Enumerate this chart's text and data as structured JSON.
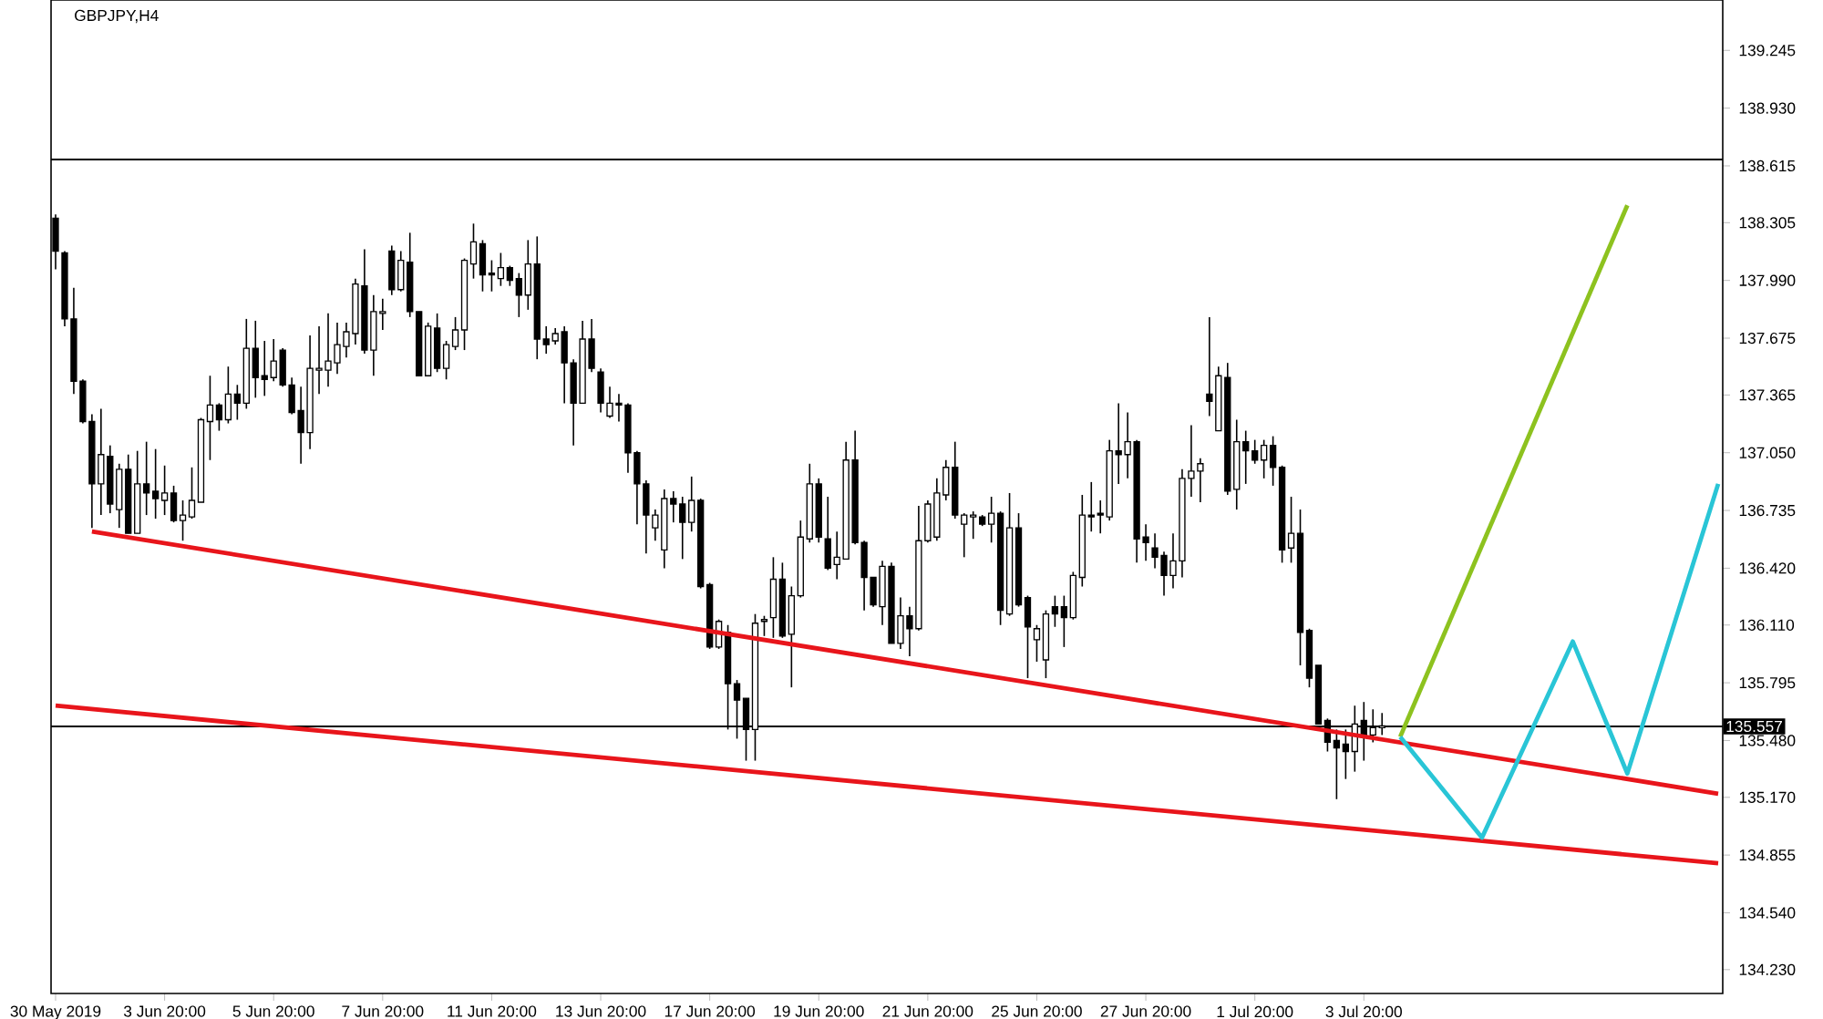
{
  "chart_data": {
    "type": "candlestick",
    "title": "GBPJPY,H4",
    "categories": [
      "30 May 2019",
      null,
      null,
      null,
      null,
      null,
      null,
      null,
      null,
      null,
      null,
      null,
      "3 Jun 20:00",
      null,
      null,
      null,
      null,
      null,
      null,
      null,
      null,
      null,
      null,
      null,
      "5 Jun 20:00",
      null,
      null,
      null,
      null,
      null,
      null,
      null,
      null,
      null,
      null,
      null,
      "7 Jun 20:00",
      null,
      null,
      null,
      null,
      null,
      null,
      null,
      null,
      null,
      null,
      null,
      "11 Jun 20:00",
      null,
      null,
      null,
      null,
      null,
      null,
      null,
      null,
      null,
      null,
      null,
      "13 Jun 20:00",
      null,
      null,
      null,
      null,
      null,
      null,
      null,
      null,
      null,
      null,
      null,
      "17 Jun 20:00",
      null,
      null,
      null,
      null,
      null,
      null,
      null,
      null,
      null,
      null,
      null,
      "19 Jun 20:00",
      null,
      null,
      null,
      null,
      null,
      null,
      null,
      null,
      null,
      null,
      null,
      "21 Jun 20:00",
      null,
      null,
      null,
      null,
      null,
      null,
      null,
      null,
      null,
      null,
      null,
      "25 Jun 20:00",
      null,
      null,
      null,
      null,
      null,
      null,
      null,
      null,
      null,
      null,
      null,
      "27 Jun 20:00",
      null,
      null,
      null,
      null,
      null,
      null,
      null,
      null,
      null,
      null,
      null,
      "1 Jul 20:00",
      null,
      null,
      null,
      null,
      null,
      null,
      null,
      null,
      null,
      null,
      null,
      "3 Jul 20:00",
      null,
      null,
      null,
      null,
      null,
      null,
      null,
      null,
      null,
      null,
      null,
      null,
      null,
      null,
      null,
      null,
      null,
      null,
      null,
      null,
      null,
      null,
      null,
      null,
      null,
      null,
      null,
      null,
      null,
      null,
      null,
      null,
      null,
      null,
      null,
      null,
      null,
      null,
      null
    ],
    "ohlc": [
      [
        138.33,
        138.35,
        138.05,
        138.15
      ],
      [
        138.14,
        138.15,
        137.74,
        137.78
      ],
      [
        137.78,
        137.95,
        137.37,
        137.44
      ],
      [
        137.44,
        137.45,
        137.21,
        137.22
      ],
      [
        137.22,
        137.26,
        136.64,
        136.88
      ],
      [
        136.88,
        137.29,
        136.71,
        137.04
      ],
      [
        137.03,
        137.09,
        136.72,
        136.77
      ],
      [
        136.74,
        136.99,
        136.64,
        136.96
      ],
      [
        136.96,
        137.04,
        136.61,
        136.61
      ],
      [
        136.61,
        137.06,
        136.61,
        136.88
      ],
      [
        136.88,
        137.11,
        136.71,
        136.83
      ],
      [
        136.84,
        137.07,
        136.69,
        136.8
      ],
      [
        136.79,
        136.98,
        136.71,
        136.83
      ],
      [
        136.83,
        136.87,
        136.67,
        136.68
      ],
      [
        136.68,
        136.79,
        136.57,
        136.71
      ],
      [
        136.7,
        136.97,
        136.69,
        136.79
      ],
      [
        136.78,
        137.24,
        136.78,
        137.23
      ],
      [
        137.22,
        137.47,
        137.01,
        137.31
      ],
      [
        137.31,
        137.32,
        137.17,
        137.23
      ],
      [
        137.23,
        137.52,
        137.21,
        137.37
      ],
      [
        137.37,
        137.42,
        137.23,
        137.32
      ],
      [
        137.32,
        137.78,
        137.29,
        137.62
      ],
      [
        137.62,
        137.77,
        137.35,
        137.46
      ],
      [
        137.47,
        137.66,
        137.36,
        137.45
      ],
      [
        137.46,
        137.67,
        137.44,
        137.55
      ],
      [
        137.61,
        137.62,
        137.41,
        137.42
      ],
      [
        137.42,
        137.46,
        137.26,
        137.27
      ],
      [
        137.28,
        137.41,
        136.99,
        137.16
      ],
      [
        137.16,
        137.69,
        137.07,
        137.51
      ],
      [
        137.5,
        137.74,
        137.37,
        137.51
      ],
      [
        137.5,
        137.81,
        137.41,
        137.55
      ],
      [
        137.54,
        137.76,
        137.48,
        137.64
      ],
      [
        137.63,
        137.76,
        137.57,
        137.71
      ],
      [
        137.7,
        138.0,
        137.64,
        137.97
      ],
      [
        137.96,
        138.16,
        137.59,
        137.61
      ],
      [
        137.61,
        137.91,
        137.47,
        137.82
      ],
      [
        137.81,
        137.89,
        137.72,
        137.82
      ],
      [
        138.15,
        138.18,
        137.91,
        137.94
      ],
      [
        137.94,
        138.15,
        137.93,
        138.1
      ],
      [
        138.09,
        138.25,
        137.79,
        137.82
      ],
      [
        137.82,
        137.82,
        137.47,
        137.47
      ],
      [
        137.47,
        137.76,
        137.47,
        137.74
      ],
      [
        137.73,
        137.81,
        137.49,
        137.51
      ],
      [
        137.51,
        137.66,
        137.45,
        137.64
      ],
      [
        137.63,
        137.79,
        137.61,
        137.72
      ],
      [
        137.72,
        138.11,
        137.61,
        138.1
      ],
      [
        138.08,
        138.3,
        138.0,
        138.2
      ],
      [
        138.19,
        138.21,
        137.93,
        138.02
      ],
      [
        138.03,
        138.1,
        137.93,
        138.02
      ],
      [
        138.0,
        138.14,
        137.96,
        138.06
      ],
      [
        138.06,
        138.07,
        137.96,
        137.99
      ],
      [
        138.0,
        138.03,
        137.79,
        137.91
      ],
      [
        137.91,
        138.21,
        137.83,
        138.08
      ],
      [
        138.08,
        138.23,
        137.56,
        137.67
      ],
      [
        137.67,
        137.74,
        137.59,
        137.64
      ],
      [
        137.66,
        137.73,
        137.64,
        137.7
      ],
      [
        137.71,
        137.74,
        137.32,
        137.54
      ],
      [
        137.54,
        137.56,
        137.09,
        137.32
      ],
      [
        137.32,
        137.77,
        137.32,
        137.67
      ],
      [
        137.67,
        137.78,
        137.49,
        137.51
      ],
      [
        137.49,
        137.51,
        137.27,
        137.32
      ],
      [
        137.25,
        137.41,
        137.24,
        137.32
      ],
      [
        137.32,
        137.37,
        137.22,
        137.31
      ],
      [
        137.31,
        137.32,
        136.94,
        137.05
      ],
      [
        137.05,
        137.06,
        136.66,
        136.88
      ],
      [
        136.88,
        136.9,
        136.5,
        136.71
      ],
      [
        136.64,
        136.74,
        136.57,
        136.71
      ],
      [
        136.52,
        136.85,
        136.42,
        136.8
      ],
      [
        136.8,
        136.84,
        136.67,
        136.77
      ],
      [
        136.77,
        136.81,
        136.47,
        136.67
      ],
      [
        136.67,
        136.92,
        136.62,
        136.79
      ],
      [
        136.79,
        136.8,
        136.31,
        136.32
      ],
      [
        136.33,
        136.34,
        135.98,
        135.99
      ],
      [
        135.99,
        136.14,
        135.98,
        136.13
      ],
      [
        136.07,
        136.11,
        135.54,
        135.79
      ],
      [
        135.79,
        135.81,
        135.49,
        135.7
      ],
      [
        135.71,
        135.71,
        135.37,
        135.54
      ],
      [
        135.54,
        136.17,
        135.37,
        136.12
      ],
      [
        136.13,
        136.16,
        136.05,
        136.14
      ],
      [
        136.15,
        136.48,
        136.04,
        136.36
      ],
      [
        136.36,
        136.45,
        136.04,
        136.05
      ],
      [
        136.06,
        136.32,
        135.77,
        136.27
      ],
      [
        136.27,
        136.68,
        136.26,
        136.59
      ],
      [
        136.58,
        136.99,
        136.56,
        136.88
      ],
      [
        136.88,
        136.91,
        136.56,
        136.59
      ],
      [
        136.58,
        136.81,
        136.41,
        136.42
      ],
      [
        136.44,
        136.62,
        136.36,
        136.48
      ],
      [
        136.47,
        137.11,
        136.47,
        137.01
      ],
      [
        137.01,
        137.17,
        136.55,
        136.56
      ],
      [
        136.56,
        136.57,
        136.19,
        136.37
      ],
      [
        136.37,
        136.37,
        136.21,
        136.22
      ],
      [
        136.21,
        136.46,
        136.11,
        136.43
      ],
      [
        136.43,
        136.45,
        136.01,
        136.01
      ],
      [
        136.01,
        136.26,
        135.98,
        136.16
      ],
      [
        136.16,
        136.21,
        135.94,
        136.09
      ],
      [
        136.09,
        136.76,
        136.08,
        136.57
      ],
      [
        136.57,
        136.79,
        136.56,
        136.77
      ],
      [
        136.59,
        136.91,
        136.57,
        136.83
      ],
      [
        136.82,
        137.01,
        136.79,
        136.97
      ],
      [
        136.97,
        137.11,
        136.69,
        136.71
      ],
      [
        136.66,
        136.72,
        136.48,
        136.71
      ],
      [
        136.7,
        136.73,
        136.58,
        136.71
      ],
      [
        136.7,
        136.71,
        136.65,
        136.66
      ],
      [
        136.66,
        136.81,
        136.56,
        136.72
      ],
      [
        136.72,
        136.73,
        136.11,
        136.19
      ],
      [
        136.17,
        136.83,
        136.16,
        136.64
      ],
      [
        136.64,
        136.72,
        136.21,
        136.22
      ],
      [
        136.26,
        136.27,
        135.82,
        136.1
      ],
      [
        136.03,
        136.11,
        135.91,
        136.09
      ],
      [
        135.92,
        136.19,
        135.82,
        136.17
      ],
      [
        136.21,
        136.27,
        136.1,
        136.17
      ],
      [
        136.21,
        136.27,
        135.99,
        136.15
      ],
      [
        136.15,
        136.4,
        136.14,
        136.38
      ],
      [
        136.37,
        136.82,
        136.32,
        136.71
      ],
      [
        136.71,
        136.89,
        136.62,
        136.7
      ],
      [
        136.72,
        136.79,
        136.61,
        136.71
      ],
      [
        136.7,
        137.12,
        136.68,
        137.06
      ],
      [
        137.06,
        137.32,
        136.88,
        137.04
      ],
      [
        137.04,
        137.27,
        136.91,
        137.11
      ],
      [
        137.11,
        137.12,
        136.45,
        136.58
      ],
      [
        136.59,
        136.66,
        136.46,
        136.56
      ],
      [
        136.53,
        136.61,
        136.42,
        136.48
      ],
      [
        136.49,
        136.51,
        136.27,
        136.38
      ],
      [
        136.38,
        136.61,
        136.31,
        136.46
      ],
      [
        136.46,
        136.96,
        136.37,
        136.91
      ],
      [
        136.91,
        137.2,
        136.81,
        136.95
      ],
      [
        136.95,
        137.02,
        136.78,
        136.99
      ],
      [
        137.37,
        137.79,
        137.25,
        137.33
      ],
      [
        137.17,
        137.52,
        137.17,
        137.47
      ],
      [
        137.46,
        137.54,
        136.82,
        136.84
      ],
      [
        136.85,
        137.23,
        136.74,
        137.11
      ],
      [
        137.11,
        137.17,
        136.88,
        137.06
      ],
      [
        137.06,
        137.12,
        136.99,
        137.01
      ],
      [
        137.01,
        137.12,
        136.91,
        137.09
      ],
      [
        137.09,
        137.14,
        136.87,
        136.97
      ],
      [
        136.97,
        136.98,
        136.45,
        136.52
      ],
      [
        136.53,
        136.81,
        136.45,
        136.61
      ],
      [
        136.61,
        136.74,
        135.89,
        136.07
      ],
      [
        136.08,
        136.09,
        135.77,
        135.82
      ],
      [
        135.89,
        135.89,
        135.57,
        135.57
      ],
      [
        135.59,
        135.6,
        135.42,
        135.47
      ],
      [
        135.48,
        135.54,
        135.16,
        135.44
      ],
      [
        135.46,
        135.54,
        135.27,
        135.42
      ],
      [
        135.42,
        135.67,
        135.31,
        135.57
      ],
      [
        135.59,
        135.69,
        135.37,
        135.51
      ],
      [
        135.51,
        135.65,
        135.47,
        135.55
      ],
      [
        135.55,
        135.63,
        135.51,
        135.56
      ],
      null,
      null,
      null,
      null,
      null,
      null,
      null,
      null,
      null,
      null,
      null,
      null,
      null,
      null,
      null,
      null,
      null,
      null,
      null,
      null,
      null,
      null,
      null,
      null,
      null,
      null,
      null,
      null,
      null,
      null,
      null,
      null,
      null,
      null,
      null,
      null,
      null
    ],
    "series": [
      {
        "type": "line",
        "color": "#e8151b",
        "values": [
          null,
          null,
          null,
          null,
          136.62,
          null,
          null,
          null,
          null,
          null,
          null,
          null,
          null,
          null,
          null,
          null,
          null,
          null,
          null,
          null,
          null,
          null,
          null,
          null,
          null,
          null,
          null,
          null,
          null,
          null,
          null,
          null,
          null,
          null,
          null,
          null,
          null,
          null,
          null,
          null,
          null,
          null,
          null,
          null,
          null,
          null,
          null,
          null,
          null,
          null,
          null,
          null,
          null,
          null,
          null,
          null,
          null,
          null,
          null,
          null,
          null,
          null,
          null,
          null,
          null,
          null,
          null,
          null,
          null,
          null,
          null,
          null,
          null,
          null,
          null,
          null,
          null,
          null,
          null,
          null,
          null,
          null,
          null,
          null,
          null,
          null,
          null,
          null,
          null,
          null,
          null,
          null,
          null,
          null,
          null,
          null,
          null,
          null,
          null,
          null,
          null,
          null,
          null,
          null,
          null,
          null,
          null,
          null,
          null,
          null,
          null,
          null,
          null,
          null,
          null,
          null,
          null,
          null,
          null,
          null,
          null,
          null,
          null,
          null,
          null,
          null,
          null,
          null,
          null,
          null,
          null,
          null,
          null,
          null,
          null,
          null,
          null,
          null,
          null,
          null,
          null,
          null,
          null,
          null,
          null,
          null,
          null,
          null,
          null,
          null,
          null,
          null,
          null,
          null,
          null,
          null,
          null,
          null,
          null,
          null,
          null,
          null,
          null,
          null,
          null,
          null,
          null,
          null,
          null,
          null,
          null,
          null,
          null,
          null,
          null,
          null,
          null,
          null,
          null,
          null,
          null,
          null,
          null,
          135.19
        ]
      },
      {
        "type": "line",
        "color": "#e8151b",
        "values": [
          135.67,
          null,
          null,
          null,
          null,
          null,
          null,
          null,
          null,
          null,
          null,
          null,
          null,
          null,
          null,
          null,
          null,
          null,
          null,
          null,
          null,
          null,
          null,
          null,
          null,
          null,
          null,
          null,
          null,
          null,
          null,
          null,
          null,
          null,
          null,
          null,
          null,
          null,
          null,
          null,
          null,
          null,
          null,
          null,
          null,
          null,
          null,
          null,
          null,
          null,
          null,
          null,
          null,
          null,
          null,
          null,
          null,
          null,
          null,
          null,
          null,
          null,
          null,
          null,
          null,
          null,
          null,
          null,
          null,
          null,
          null,
          null,
          null,
          null,
          null,
          null,
          null,
          null,
          null,
          null,
          null,
          null,
          null,
          null,
          null,
          null,
          null,
          null,
          null,
          null,
          null,
          null,
          null,
          null,
          null,
          null,
          null,
          null,
          null,
          null,
          null,
          null,
          null,
          null,
          null,
          null,
          null,
          null,
          null,
          null,
          null,
          null,
          null,
          null,
          null,
          null,
          null,
          null,
          null,
          null,
          null,
          null,
          null,
          null,
          null,
          null,
          null,
          null,
          null,
          null,
          null,
          null,
          null,
          null,
          null,
          null,
          null,
          null,
          null,
          null,
          null,
          null,
          null,
          null,
          null,
          null,
          null,
          null,
          null,
          null,
          null,
          null,
          null,
          null,
          null,
          null,
          null,
          null,
          null,
          null,
          null,
          null,
          null,
          null,
          null,
          null,
          null,
          null,
          null,
          null,
          null,
          null,
          null,
          null,
          null,
          null,
          null,
          null,
          null,
          null,
          null,
          null,
          null,
          134.81
        ]
      },
      {
        "type": "line",
        "color": "#8dc21f",
        "values": [
          null,
          null,
          null,
          null,
          null,
          null,
          null,
          null,
          null,
          null,
          null,
          null,
          null,
          null,
          null,
          null,
          null,
          null,
          null,
          null,
          null,
          null,
          null,
          null,
          null,
          null,
          null,
          null,
          null,
          null,
          null,
          null,
          null,
          null,
          null,
          null,
          null,
          null,
          null,
          null,
          null,
          null,
          null,
          null,
          null,
          null,
          null,
          null,
          null,
          null,
          null,
          null,
          null,
          null,
          null,
          null,
          null,
          null,
          null,
          null,
          null,
          null,
          null,
          null,
          null,
          null,
          null,
          null,
          null,
          null,
          null,
          null,
          null,
          null,
          null,
          null,
          null,
          null,
          null,
          null,
          null,
          null,
          null,
          null,
          null,
          null,
          null,
          null,
          null,
          null,
          null,
          null,
          null,
          null,
          null,
          null,
          null,
          null,
          null,
          null,
          null,
          null,
          null,
          null,
          null,
          null,
          null,
          null,
          null,
          null,
          null,
          null,
          null,
          null,
          null,
          null,
          null,
          null,
          null,
          null,
          null,
          null,
          null,
          null,
          null,
          null,
          null,
          null,
          null,
          null,
          null,
          null,
          null,
          null,
          null,
          null,
          null,
          null,
          null,
          null,
          null,
          null,
          null,
          null,
          null,
          null,
          null,
          null,
          135.5,
          null,
          null,
          null,
          null,
          null,
          null,
          null,
          null,
          null,
          null,
          null,
          null,
          null,
          null,
          null,
          null,
          null,
          null,
          null,
          null,
          null,
          null,
          null,
          null,
          138.4,
          null,
          null,
          null,
          null,
          null,
          null,
          null,
          null,
          null,
          null
        ]
      },
      {
        "type": "line",
        "color": "#29c5d6",
        "values": [
          null,
          null,
          null,
          null,
          null,
          null,
          null,
          null,
          null,
          null,
          null,
          null,
          null,
          null,
          null,
          null,
          null,
          null,
          null,
          null,
          null,
          null,
          null,
          null,
          null,
          null,
          null,
          null,
          null,
          null,
          null,
          null,
          null,
          null,
          null,
          null,
          null,
          null,
          null,
          null,
          null,
          null,
          null,
          null,
          null,
          null,
          null,
          null,
          null,
          null,
          null,
          null,
          null,
          null,
          null,
          null,
          null,
          null,
          null,
          null,
          null,
          null,
          null,
          null,
          null,
          null,
          null,
          null,
          null,
          null,
          null,
          null,
          null,
          null,
          null,
          null,
          null,
          null,
          null,
          null,
          null,
          null,
          null,
          null,
          null,
          null,
          null,
          null,
          null,
          null,
          null,
          null,
          null,
          null,
          null,
          null,
          null,
          null,
          null,
          null,
          null,
          null,
          null,
          null,
          null,
          null,
          null,
          null,
          null,
          null,
          null,
          null,
          null,
          null,
          null,
          null,
          null,
          null,
          null,
          null,
          null,
          null,
          null,
          null,
          null,
          null,
          null,
          null,
          null,
          null,
          null,
          null,
          null,
          null,
          null,
          null,
          null,
          null,
          null,
          null,
          null,
          null,
          null,
          null,
          null,
          null,
          null,
          null,
          135.5,
          null,
          null,
          null,
          null,
          null,
          null,
          null,
          null,
          134.95,
          null,
          null,
          null,
          null,
          null,
          null,
          null,
          null,
          null,
          136.02,
          null,
          null,
          null,
          null,
          null,
          135.3,
          null,
          null,
          null,
          null,
          null,
          null,
          null,
          null,
          null,
          136.88
        ]
      }
    ],
    "ref_lines": [
      {
        "axis": "y",
        "value": 138.65,
        "color": "#000000"
      },
      {
        "axis": "y",
        "value": 135.557,
        "label": "135.557",
        "color": "#000000"
      }
    ],
    "ylim": [
      134.1,
      139.52
    ],
    "yticks": [
      {
        "value": 134.23,
        "label": "134.230"
      },
      {
        "value": 134.54,
        "label": "134.540"
      },
      134.855,
      {
        "value": 135.17,
        "label": "135.170"
      },
      {
        "value": 135.48,
        "label": "135.480"
      },
      135.795,
      {
        "value": 136.11,
        "label": "136.110"
      },
      {
        "value": 136.42,
        "label": "136.420"
      },
      136.735,
      {
        "value": 137.05,
        "label": "137.050"
      },
      137.365,
      137.675,
      {
        "value": 137.99,
        "label": "137.990"
      },
      138.305,
      138.615,
      {
        "value": 138.93,
        "label": "138.930"
      },
      139.245
    ]
  }
}
